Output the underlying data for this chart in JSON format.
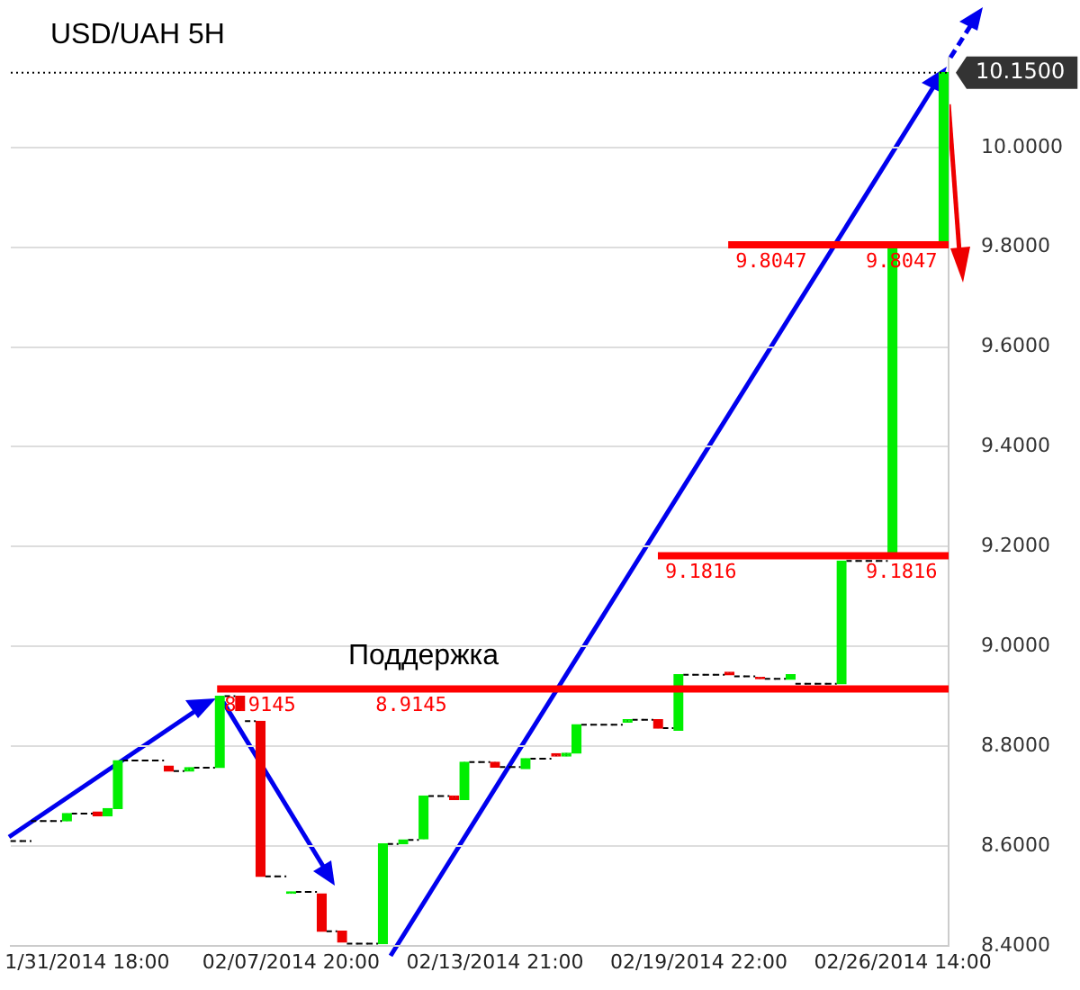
{
  "chart_data": {
    "type": "candlestick",
    "title": "USD/UAH 5H",
    "categories": [
      null,
      null,
      null,
      null,
      null,
      null,
      null,
      "1/31/2014 18:00",
      null,
      null,
      null,
      null,
      null,
      null,
      null,
      null,
      null,
      null,
      null,
      null,
      null,
      null,
      null,
      null,
      null,
      null,
      null,
      "02/07/2014 20:00",
      null,
      null,
      null,
      null,
      null,
      null,
      null,
      null,
      null,
      null,
      null,
      null,
      null,
      null,
      null,
      null,
      null,
      null,
      null,
      "02/13/2014 21:00",
      null,
      null,
      null,
      null,
      null,
      null,
      null,
      null,
      null,
      null,
      null,
      null,
      null,
      null,
      null,
      null,
      null,
      null,
      null,
      "02/19/2014 22:00",
      null,
      null,
      null,
      null,
      null,
      null,
      null,
      null,
      null,
      null,
      null,
      null,
      null,
      null,
      null,
      null,
      null,
      null,
      null,
      "02/26/2014 14:00",
      null,
      null,
      null,
      null
    ],
    "ohlc": [
      [
        8.61,
        8.61,
        8.61,
        8.61
      ],
      [
        8.61,
        8.61,
        8.61,
        8.61
      ],
      [
        8.65,
        8.65,
        8.65,
        8.65
      ],
      [
        8.65,
        8.65,
        8.65,
        8.65
      ],
      [
        8.65,
        8.65,
        8.65,
        8.65
      ],
      [
        8.65,
        8.665,
        8.65,
        8.665
      ],
      [
        8.665,
        8.665,
        8.665,
        8.665
      ],
      [
        8.665,
        8.665,
        8.665,
        8.665
      ],
      [
        8.668,
        8.668,
        8.66,
        8.66
      ],
      [
        8.66,
        8.675,
        8.66,
        8.675
      ],
      [
        8.675,
        8.771,
        8.675,
        8.771
      ],
      [
        8.771,
        8.771,
        8.771,
        8.771
      ],
      [
        8.771,
        8.771,
        8.771,
        8.771
      ],
      [
        8.771,
        8.771,
        8.771,
        8.771
      ],
      [
        8.771,
        8.771,
        8.771,
        8.771
      ],
      [
        8.76,
        8.76,
        8.75,
        8.75
      ],
      [
        8.75,
        8.75,
        8.75,
        8.75
      ],
      [
        8.75,
        8.757,
        8.75,
        8.757
      ],
      [
        8.757,
        8.757,
        8.757,
        8.757
      ],
      [
        8.757,
        8.757,
        8.757,
        8.757
      ],
      [
        8.757,
        8.9,
        8.757,
        8.9
      ],
      [
        8.9,
        8.9,
        8.9,
        8.9
      ],
      [
        8.9,
        8.9,
        8.871,
        8.871
      ],
      [
        8.85,
        8.85,
        8.85,
        8.85
      ],
      [
        8.85,
        8.85,
        8.539,
        8.539
      ],
      [
        8.539,
        8.539,
        8.539,
        8.539
      ],
      [
        8.539,
        8.539,
        8.539,
        8.539
      ],
      [
        8.505,
        8.508,
        8.505,
        8.508
      ],
      [
        8.508,
        8.508,
        8.508,
        8.508
      ],
      [
        8.508,
        8.508,
        8.508,
        8.508
      ],
      [
        8.504,
        8.504,
        8.429,
        8.429
      ],
      [
        8.429,
        8.429,
        8.429,
        8.429
      ],
      [
        8.429,
        8.429,
        8.407,
        8.407
      ],
      [
        8.404,
        8.404,
        8.404,
        8.404
      ],
      [
        8.404,
        8.404,
        8.404,
        8.404
      ],
      [
        8.404,
        8.404,
        8.404,
        8.404
      ],
      [
        8.404,
        8.604,
        8.404,
        8.604
      ],
      [
        8.604,
        8.604,
        8.604,
        8.604
      ],
      [
        8.604,
        8.612,
        8.604,
        8.612
      ],
      [
        8.612,
        8.612,
        8.612,
        8.612
      ],
      [
        8.614,
        8.7,
        8.614,
        8.7
      ],
      [
        8.7,
        8.7,
        8.7,
        8.7
      ],
      [
        8.7,
        8.7,
        8.7,
        8.7
      ],
      [
        8.7,
        8.7,
        8.693,
        8.693
      ],
      [
        8.693,
        8.768,
        8.693,
        8.768
      ],
      [
        8.768,
        8.768,
        8.768,
        8.768
      ],
      [
        8.768,
        8.768,
        8.768,
        8.768
      ],
      [
        8.768,
        8.768,
        8.758,
        8.758
      ],
      [
        8.758,
        8.758,
        8.758,
        8.758
      ],
      [
        8.758,
        8.758,
        8.758,
        8.758
      ],
      [
        8.755,
        8.775,
        8.755,
        8.775
      ],
      [
        8.775,
        8.775,
        8.775,
        8.775
      ],
      [
        8.775,
        8.775,
        8.775,
        8.775
      ],
      [
        8.785,
        8.785,
        8.78,
        8.78
      ],
      [
        8.78,
        8.786,
        8.78,
        8.786
      ],
      [
        8.786,
        8.843,
        8.786,
        8.843
      ],
      [
        8.843,
        8.843,
        8.843,
        8.843
      ],
      [
        8.843,
        8.843,
        8.843,
        8.843
      ],
      [
        8.843,
        8.843,
        8.843,
        8.843
      ],
      [
        8.843,
        8.843,
        8.843,
        8.843
      ],
      [
        8.848,
        8.853,
        8.848,
        8.853
      ],
      [
        8.853,
        8.853,
        8.853,
        8.853
      ],
      [
        8.853,
        8.853,
        8.853,
        8.853
      ],
      [
        8.853,
        8.853,
        8.836,
        8.836
      ],
      [
        8.836,
        8.836,
        8.836,
        8.836
      ],
      [
        8.832,
        8.943,
        8.832,
        8.943
      ],
      [
        8.943,
        8.943,
        8.943,
        8.943
      ],
      [
        8.943,
        8.943,
        8.943,
        8.943
      ],
      [
        8.943,
        8.943,
        8.943,
        8.943
      ],
      [
        8.943,
        8.943,
        8.943,
        8.943
      ],
      [
        8.948,
        8.948,
        8.943,
        8.943
      ],
      [
        8.94,
        8.94,
        8.94,
        8.94
      ],
      [
        8.94,
        8.94,
        8.94,
        8.94
      ],
      [
        8.938,
        8.938,
        8.935,
        8.935
      ],
      [
        8.935,
        8.935,
        8.935,
        8.935
      ],
      [
        8.935,
        8.935,
        8.935,
        8.935
      ],
      [
        8.934,
        8.943,
        8.934,
        8.943
      ],
      [
        8.925,
        8.925,
        8.925,
        8.925
      ],
      [
        8.925,
        8.925,
        8.925,
        8.925
      ],
      [
        8.925,
        8.925,
        8.925,
        8.925
      ],
      [
        8.925,
        8.925,
        8.925,
        8.925
      ],
      [
        8.925,
        9.171,
        8.925,
        9.171
      ],
      [
        9.171,
        9.171,
        9.171,
        9.171
      ],
      [
        9.171,
        9.171,
        9.171,
        9.171
      ],
      [
        9.171,
        9.171,
        9.171,
        9.171
      ],
      [
        9.171,
        9.171,
        9.171,
        9.171
      ],
      [
        9.18,
        9.797,
        9.18,
        9.797
      ],
      null,
      null,
      null,
      null,
      [
        9.804,
        10.15,
        9.804,
        10.15
      ]
    ],
    "colors": [
      "#000000",
      "#000000",
      "#000000",
      "#000000",
      "#000000",
      "#00ee00",
      "#000000",
      "#000000",
      "#ee0000",
      "#00ee00",
      "#00ee00",
      "#000000",
      "#000000",
      "#000000",
      "#000000",
      "#ee0000",
      "#000000",
      "#00ee00",
      "#000000",
      "#000000",
      "#00ee00",
      "#000000",
      "#ee0000",
      "#000000",
      "#ee0000",
      "#000000",
      "#000000",
      "#00ee00",
      "#000000",
      "#000000",
      "#ee0000",
      "#000000",
      "#ee0000",
      "#000000",
      "#000000",
      "#000000",
      "#00ee00",
      "#000000",
      "#00ee00",
      "#000000",
      "#00ee00",
      "#000000",
      "#000000",
      "#ee0000",
      "#00ee00",
      "#000000",
      "#000000",
      "#ee0000",
      "#000000",
      "#000000",
      "#00ee00",
      "#000000",
      "#000000",
      "#ee0000",
      "#00ee00",
      "#00ee00",
      "#000000",
      "#000000",
      "#000000",
      "#000000",
      "#00ee00",
      "#000000",
      "#000000",
      "#ee0000",
      "#000000",
      "#00ee00",
      "#000000",
      "#000000",
      "#000000",
      "#000000",
      "#ee0000",
      "#000000",
      "#000000",
      "#ee0000",
      "#000000",
      "#000000",
      "#00ee00",
      "#000000",
      "#000000",
      "#000000",
      "#000000",
      "#00ee00",
      "#000000",
      "#000000",
      "#000000",
      "#000000",
      "#00ee00",
      null,
      null,
      null,
      null,
      "#00ee00"
    ],
    "ylim": [
      8.4,
      10.18
    ],
    "yticks": [
      {
        "value": 8.4,
        "label": "8.4000"
      },
      {
        "value": 8.6,
        "label": "8.6000"
      },
      {
        "value": 8.8,
        "label": "8.8000"
      },
      {
        "value": 9.0,
        "label": "9.0000"
      },
      {
        "value": 9.2,
        "label": "9.2000"
      },
      {
        "value": 9.4,
        "label": "9.4000"
      },
      {
        "value": 9.6,
        "label": "9.6000"
      },
      {
        "value": 9.8,
        "label": "9.8000"
      },
      {
        "value": 10.0,
        "label": "10.0000"
      }
    ],
    "grid": "y",
    "ref_lines": [
      {
        "axis": "y",
        "value": 8.9145,
        "label": "8.9145",
        "color": "#ff0000",
        "line_style": "solid"
      },
      {
        "axis": "y",
        "value": 9.1816,
        "label": "9.1816",
        "color": "#ff0000",
        "line_style": "solid"
      },
      {
        "axis": "y",
        "value": 9.8047,
        "label": "9.8047",
        "color": "#ff0000",
        "line_style": "solid"
      },
      {
        "axis": "y",
        "value": 10.15,
        "label": "10.1500",
        "color": "#000000",
        "line_style": "dotted"
      }
    ],
    "annotations": [
      "Поддержка"
    ]
  }
}
